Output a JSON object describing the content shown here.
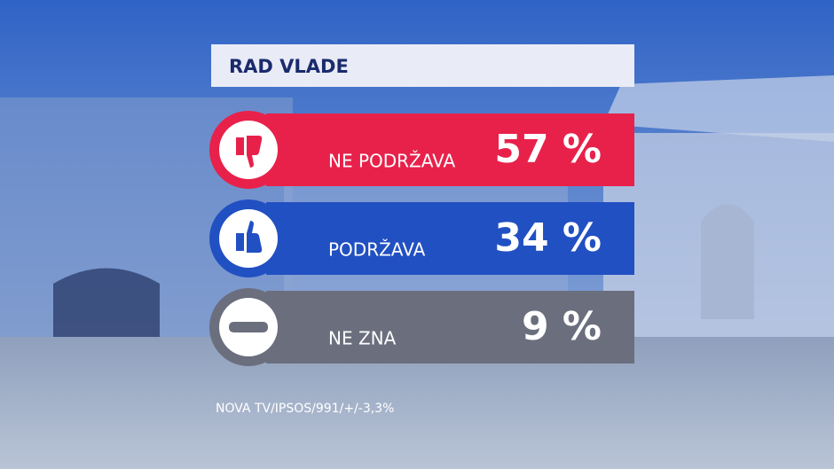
{
  "title": "RAD VLADE",
  "items": [
    {
      "label": "NE PODRŽAVA",
      "value": "57 %"
    },
    {
      "label": "PODRŽAVA",
      "value": "34 %"
    },
    {
      "label": "NE ZNA",
      "value": "9 %"
    }
  ],
  "source": "NOVA TV/IPSOS/991/+/-3,3%"
}
